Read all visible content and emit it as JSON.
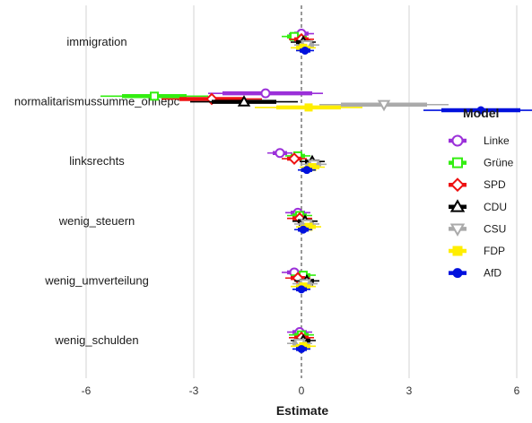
{
  "chart_data": {
    "type": "dot-whisker",
    "xlabel": "Estimate",
    "ylabel": "",
    "xlim": [
      -8,
      8.5
    ],
    "xticks": [
      -6,
      -3,
      0,
      3,
      6
    ],
    "xtick_labels": [
      "-6",
      "-3",
      "0",
      "3",
      "6"
    ],
    "reference_line": 0,
    "grid": "vertical major lines",
    "legend_title": "Model",
    "legend_position": "right",
    "categories": [
      "immigration",
      "normalitarismussumme_ohnepc",
      "linksrechts",
      "wenig_steuern",
      "wenig_umverteilung",
      "wenig_schulden"
    ],
    "series": [
      {
        "name": "Linke",
        "color": "#9B30D9",
        "marker": "circle-open",
        "values": [
          0.0,
          -1.0,
          -0.6,
          -0.1,
          -0.2,
          -0.05
        ],
        "ci_inner": [
          [
            -0.2,
            0.2
          ],
          [
            -2.2,
            0.3
          ],
          [
            -0.8,
            -0.4
          ],
          [
            -0.3,
            0.1
          ],
          [
            -0.4,
            0.0
          ],
          [
            -0.25,
            0.15
          ]
        ],
        "ci_outer": [
          [
            -0.35,
            0.35
          ],
          [
            -2.6,
            0.6
          ],
          [
            -0.95,
            -0.25
          ],
          [
            -0.45,
            0.25
          ],
          [
            -0.55,
            0.15
          ],
          [
            -0.4,
            0.3
          ]
        ]
      },
      {
        "name": "Grüne",
        "color": "#33EE11",
        "marker": "square-open",
        "values": [
          -0.2,
          -4.1,
          -0.1,
          -0.05,
          0.05,
          0.0
        ],
        "ci_inner": [
          [
            -0.4,
            0.0
          ],
          [
            -5.0,
            -3.2
          ],
          [
            -0.3,
            0.1
          ],
          [
            -0.25,
            0.15
          ],
          [
            -0.15,
            0.25
          ],
          [
            -0.2,
            0.2
          ]
        ],
        "ci_outer": [
          [
            -0.55,
            0.15
          ],
          [
            -5.6,
            -2.6
          ],
          [
            -0.45,
            0.25
          ],
          [
            -0.4,
            0.3
          ],
          [
            -0.3,
            0.4
          ],
          [
            -0.35,
            0.35
          ]
        ]
      },
      {
        "name": "SPD",
        "color": "#EE1111",
        "marker": "diamond-open",
        "values": [
          0.0,
          -2.5,
          -0.2,
          -0.05,
          -0.1,
          0.0
        ],
        "ci_inner": [
          [
            -0.2,
            0.2
          ],
          [
            -3.4,
            -1.6
          ],
          [
            -0.4,
            0.0
          ],
          [
            -0.25,
            0.15
          ],
          [
            -0.3,
            0.1
          ],
          [
            -0.2,
            0.2
          ]
        ],
        "ci_outer": [
          [
            -0.35,
            0.35
          ],
          [
            -3.9,
            -1.1
          ],
          [
            -0.55,
            0.15
          ],
          [
            -0.4,
            0.3
          ],
          [
            -0.45,
            0.25
          ],
          [
            -0.35,
            0.35
          ]
        ]
      },
      {
        "name": "CDU",
        "color": "#000000",
        "marker": "triangle-up-open",
        "values": [
          0.05,
          -1.6,
          0.3,
          0.1,
          0.15,
          0.05
        ],
        "ci_inner": [
          [
            -0.15,
            0.25
          ],
          [
            -2.5,
            -0.7
          ],
          [
            0.1,
            0.5
          ],
          [
            -0.1,
            0.3
          ],
          [
            -0.05,
            0.35
          ],
          [
            -0.15,
            0.25
          ]
        ],
        "ci_outer": [
          [
            -0.3,
            0.4
          ],
          [
            -3.1,
            -0.1
          ],
          [
            -0.05,
            0.65
          ],
          [
            -0.25,
            0.45
          ],
          [
            -0.2,
            0.5
          ],
          [
            -0.3,
            0.4
          ]
        ]
      },
      {
        "name": "CSU",
        "color": "#AAAAAA",
        "marker": "triangle-down-open",
        "values": [
          0.15,
          2.3,
          0.35,
          0.15,
          0.1,
          -0.05
        ],
        "ci_inner": [
          [
            -0.05,
            0.35
          ],
          [
            1.1,
            3.5
          ],
          [
            0.15,
            0.55
          ],
          [
            -0.05,
            0.35
          ],
          [
            -0.1,
            0.3
          ],
          [
            -0.25,
            0.15
          ]
        ],
        "ci_outer": [
          [
            -0.2,
            0.5
          ],
          [
            0.5,
            4.1
          ],
          [
            0.0,
            0.7
          ],
          [
            -0.2,
            0.5
          ],
          [
            -0.25,
            0.45
          ],
          [
            -0.4,
            0.3
          ]
        ]
      },
      {
        "name": "FDP",
        "color": "#FFEE00",
        "marker": "square-filled",
        "values": [
          0.05,
          0.2,
          0.3,
          0.2,
          0.05,
          0.05
        ],
        "ci_inner": [
          [
            -0.15,
            0.25
          ],
          [
            -0.7,
            1.1
          ],
          [
            0.1,
            0.5
          ],
          [
            0.0,
            0.4
          ],
          [
            -0.15,
            0.25
          ],
          [
            -0.15,
            0.25
          ]
        ],
        "ci_outer": [
          [
            -0.3,
            0.4
          ],
          [
            -1.3,
            1.7
          ],
          [
            -0.05,
            0.65
          ],
          [
            -0.15,
            0.55
          ],
          [
            -0.3,
            0.4
          ],
          [
            -0.3,
            0.4
          ]
        ]
      },
      {
        "name": "AfD",
        "color": "#0011DD",
        "marker": "circle-filled",
        "values": [
          0.1,
          5.0,
          0.15,
          0.05,
          0.0,
          0.0
        ],
        "ci_inner": [
          [
            -0.05,
            0.25
          ],
          [
            3.9,
            6.1
          ],
          [
            0.0,
            0.3
          ],
          [
            -0.1,
            0.2
          ],
          [
            -0.15,
            0.15
          ],
          [
            -0.15,
            0.15
          ]
        ],
        "ci_outer": [
          [
            -0.15,
            0.35
          ],
          [
            3.4,
            6.6
          ],
          [
            -0.1,
            0.4
          ],
          [
            -0.2,
            0.3
          ],
          [
            -0.25,
            0.25
          ],
          [
            -0.25,
            0.25
          ]
        ]
      }
    ]
  }
}
